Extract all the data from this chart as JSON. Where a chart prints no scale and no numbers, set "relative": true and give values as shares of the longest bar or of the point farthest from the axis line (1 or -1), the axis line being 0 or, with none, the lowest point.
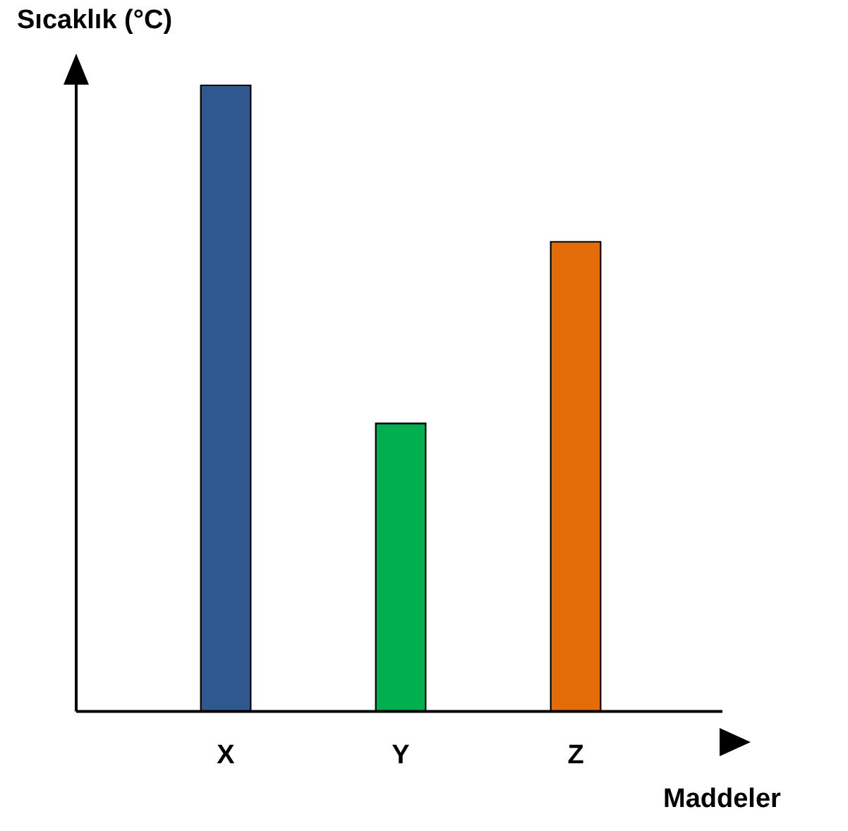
{
  "chart_data": {
    "type": "bar",
    "relative": true,
    "ylabel": "Sıcaklık (°C)",
    "xlabel": "Maddeler",
    "categories": [
      "X",
      "Y",
      "Z"
    ],
    "values": [
      1,
      0.46,
      0.75
    ],
    "colors": [
      "#30598f",
      "#00b050",
      "#e36c09"
    ]
  }
}
